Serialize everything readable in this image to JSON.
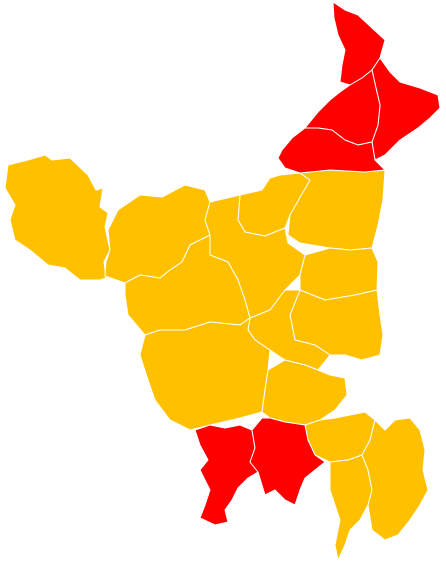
{
  "map": {
    "colors": {
      "party_a": "#ffc000",
      "party_b": "#ff0000",
      "border": "#ffffff",
      "background": "#ffffff"
    },
    "regions": [
      {
        "name": "panchkula-region",
        "party": "party_b"
      },
      {
        "name": "yamunanagar-region",
        "party": "party_b"
      },
      {
        "name": "ambala-region",
        "party": "party_b"
      },
      {
        "name": "kurukshetra-region",
        "party": "party_b"
      },
      {
        "name": "sirsa-region",
        "party": "party_a"
      },
      {
        "name": "fatehabad-region",
        "party": "party_a"
      },
      {
        "name": "kaithal-region",
        "party": "party_a"
      },
      {
        "name": "karnal-region",
        "party": "party_a"
      },
      {
        "name": "jind-region",
        "party": "party_a"
      },
      {
        "name": "hisar-region",
        "party": "party_a"
      },
      {
        "name": "panipat-region",
        "party": "party_a"
      },
      {
        "name": "sonipat-region",
        "party": "party_a"
      },
      {
        "name": "rohtak-region",
        "party": "party_a"
      },
      {
        "name": "bhiwani-region",
        "party": "party_a"
      },
      {
        "name": "jhajjar-region",
        "party": "party_a"
      },
      {
        "name": "charkhi-dadri-region",
        "party": "party_a"
      },
      {
        "name": "gurugram-region",
        "party": "party_a"
      },
      {
        "name": "mewat-region",
        "party": "party_a"
      },
      {
        "name": "palwal-region",
        "party": "party_a"
      },
      {
        "name": "mahendragarh-region",
        "party": "party_b"
      },
      {
        "name": "rewari-region",
        "party": "party_b"
      }
    ]
  }
}
